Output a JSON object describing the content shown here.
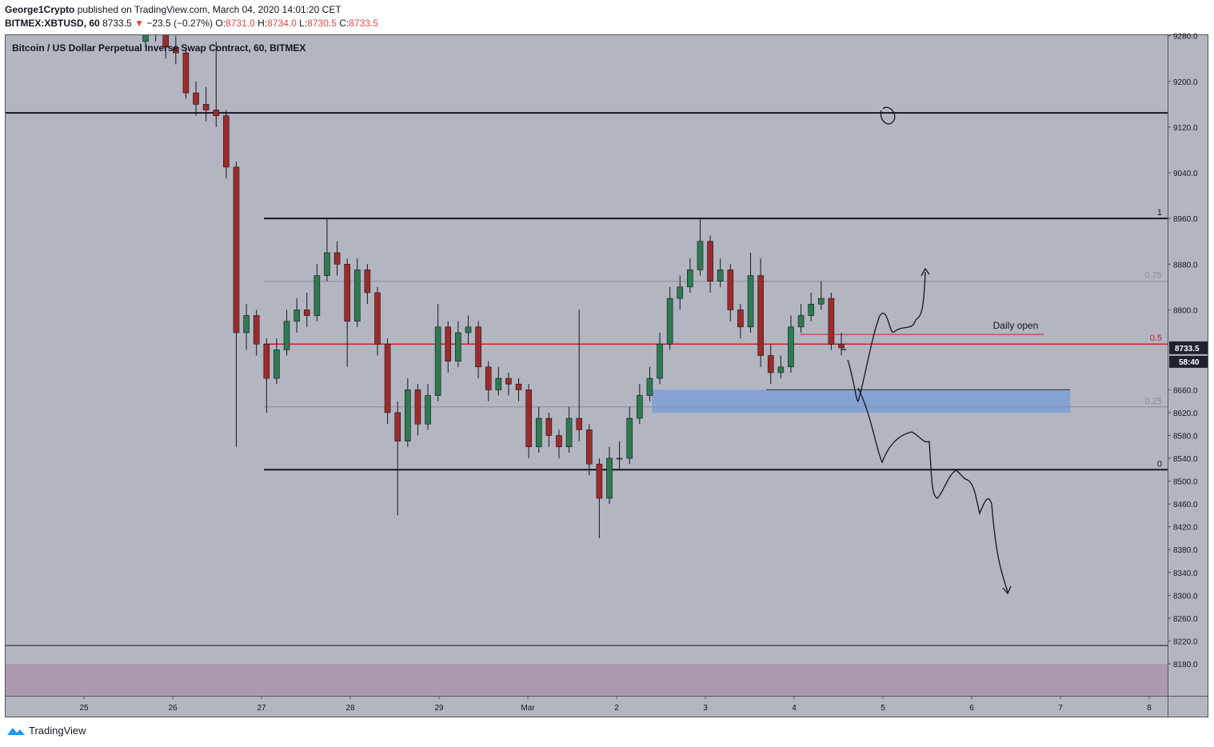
{
  "header": {
    "author": "George1Crypto",
    "published": "published on TradingView.com, March 04, 2020 14:01:20 CET",
    "symbol": "BITMEX:XBTUSD, 60",
    "last": "8733.5",
    "arrow": "▼",
    "change": "−23.5 (−0.27%)",
    "o_label": "O:",
    "o": "8731.0",
    "h_label": "H:",
    "h": "8734.0",
    "l_label": "L:",
    "l": "8730.5",
    "c_label": "C:",
    "c": "8733.5"
  },
  "footer": {
    "brand": "TradingView"
  },
  "chart_data": {
    "type": "candlestick",
    "title": "Bitcoin / US Dollar Perpetual Inverse Swap Contract, 60, BITMEX",
    "up_color": "#2f7a4f",
    "down_color": "#9e2b2b",
    "categories": [
      "25",
      "26",
      "27",
      "28",
      "29",
      "Mar",
      "2",
      "3",
      "4",
      "5",
      "6",
      "7",
      "8"
    ],
    "ylim": [
      8124,
      9281
    ],
    "yticks": [
      {
        "value": 9280,
        "label": "9280.0"
      },
      {
        "value": 9200,
        "label": "9200.0"
      },
      {
        "value": 9120,
        "label": "9120.0"
      },
      {
        "value": 9040,
        "label": "9040.0"
      },
      {
        "value": 8960,
        "label": "8960.0"
      },
      {
        "value": 8880,
        "label": "8880.0"
      },
      {
        "value": 8800,
        "label": "8800.0"
      },
      {
        "value": 8660,
        "label": "8660.0"
      },
      {
        "value": 8620,
        "label": "8620.0"
      },
      {
        "value": 8580,
        "label": "8580.0"
      },
      {
        "value": 8540,
        "label": "8540.0"
      },
      {
        "value": 8500,
        "label": "8500.0"
      },
      {
        "value": 8460,
        "label": "8460.0"
      },
      {
        "value": 8420,
        "label": "8420.0"
      },
      {
        "value": 8380,
        "label": "8380.0"
      },
      {
        "value": 8340,
        "label": "8340.0"
      },
      {
        "value": 8300,
        "label": "8300.0"
      },
      {
        "value": 8260,
        "label": "8260.0"
      },
      {
        "value": 8220,
        "label": "8220.0"
      },
      {
        "value": 8180,
        "label": "8180.0"
      }
    ],
    "last_price": {
      "value": 8733.5,
      "label": "8733.5",
      "countdown": "58:40"
    },
    "fib_levels": [
      {
        "label": "1",
        "value": 8960,
        "color": "#131722"
      },
      {
        "label": "0.75",
        "value": 8850,
        "color": "#8a8d96"
      },
      {
        "label": "0.5",
        "value": 8740,
        "color": "#c62828"
      },
      {
        "label": "0.25",
        "value": 8630,
        "color": "#8a8d96"
      },
      {
        "label": "0",
        "value": 8520,
        "color": "#131722"
      }
    ],
    "lines": [
      {
        "value": 9145,
        "color": "#131722"
      },
      {
        "value": 8212,
        "color": "#131722"
      }
    ],
    "daily_open": {
      "label": "Daily open",
      "value": 8757,
      "color": "#c62828"
    },
    "zones": [
      {
        "from": 8660,
        "to": 8620,
        "color": "#7e9fd6"
      },
      {
        "from": 8180,
        "to": 8124,
        "color": "#ae9aaf"
      }
    ],
    "candles": [
      [
        9270,
        9300,
        9260,
        9285
      ],
      [
        9285,
        9300,
        9270,
        9290
      ],
      [
        9290,
        9300,
        9240,
        9260
      ],
      [
        9260,
        9280,
        9230,
        9250
      ],
      [
        9250,
        9260,
        9170,
        9180
      ],
      [
        9180,
        9200,
        9140,
        9160
      ],
      [
        9160,
        9190,
        9130,
        9150
      ],
      [
        9150,
        9270,
        9120,
        9140
      ],
      [
        9140,
        9150,
        9030,
        9050
      ],
      [
        9050,
        9060,
        8560,
        8760
      ],
      [
        8760,
        8810,
        8730,
        8790
      ],
      [
        8790,
        8800,
        8720,
        8740
      ],
      [
        8740,
        8750,
        8620,
        8680
      ],
      [
        8680,
        8750,
        8670,
        8730
      ],
      [
        8730,
        8800,
        8720,
        8780
      ],
      [
        8780,
        8820,
        8760,
        8800
      ],
      [
        8800,
        8830,
        8770,
        8790
      ],
      [
        8790,
        8880,
        8780,
        8860
      ],
      [
        8860,
        8960,
        8850,
        8900
      ],
      [
        8900,
        8920,
        8860,
        8880
      ],
      [
        8880,
        8890,
        8700,
        8780
      ],
      [
        8780,
        8890,
        8770,
        8870
      ],
      [
        8870,
        8880,
        8810,
        8830
      ],
      [
        8830,
        8840,
        8720,
        8740
      ],
      [
        8740,
        8750,
        8600,
        8620
      ],
      [
        8620,
        8640,
        8440,
        8570
      ],
      [
        8570,
        8680,
        8560,
        8660
      ],
      [
        8660,
        8670,
        8580,
        8600
      ],
      [
        8600,
        8670,
        8590,
        8650
      ],
      [
        8650,
        8810,
        8640,
        8770
      ],
      [
        8770,
        8780,
        8690,
        8710
      ],
      [
        8710,
        8780,
        8700,
        8760
      ],
      [
        8760,
        8790,
        8740,
        8770
      ],
      [
        8770,
        8780,
        8680,
        8700
      ],
      [
        8700,
        8710,
        8640,
        8660
      ],
      [
        8660,
        8700,
        8650,
        8680
      ],
      [
        8680,
        8690,
        8650,
        8670
      ],
      [
        8670,
        8680,
        8640,
        8660
      ],
      [
        8660,
        8670,
        8540,
        8560
      ],
      [
        8560,
        8630,
        8550,
        8610
      ],
      [
        8610,
        8620,
        8560,
        8580
      ],
      [
        8580,
        8590,
        8540,
        8560
      ],
      [
        8560,
        8630,
        8550,
        8610
      ],
      [
        8610,
        8800,
        8570,
        8590
      ],
      [
        8590,
        8600,
        8510,
        8530
      ],
      [
        8530,
        8540,
        8400,
        8470
      ],
      [
        8470,
        8560,
        8460,
        8540
      ],
      [
        8540,
        8570,
        8520,
        8540
      ],
      [
        8540,
        8630,
        8530,
        8610
      ],
      [
        8610,
        8670,
        8600,
        8650
      ],
      [
        8650,
        8700,
        8640,
        8680
      ],
      [
        8680,
        8760,
        8670,
        8740
      ],
      [
        8740,
        8840,
        8730,
        8820
      ],
      [
        8820,
        8860,
        8800,
        8840
      ],
      [
        8840,
        8890,
        8830,
        8870
      ],
      [
        8870,
        8960,
        8860,
        8920
      ],
      [
        8920,
        8930,
        8830,
        8850
      ],
      [
        8850,
        8890,
        8840,
        8870
      ],
      [
        8870,
        8880,
        8780,
        8800
      ],
      [
        8800,
        8810,
        8750,
        8770
      ],
      [
        8770,
        8900,
        8760,
        8860
      ],
      [
        8860,
        8890,
        8700,
        8720
      ],
      [
        8720,
        8740,
        8670,
        8690
      ],
      [
        8690,
        8720,
        8680,
        8700
      ],
      [
        8700,
        8790,
        8690,
        8770
      ],
      [
        8770,
        8810,
        8760,
        8790
      ],
      [
        8790,
        8830,
        8780,
        8810
      ],
      [
        8810,
        8850,
        8800,
        8820
      ],
      [
        8820,
        8830,
        8730,
        8740
      ],
      [
        8740,
        8760,
        8720,
        8733.5
      ]
    ]
  }
}
